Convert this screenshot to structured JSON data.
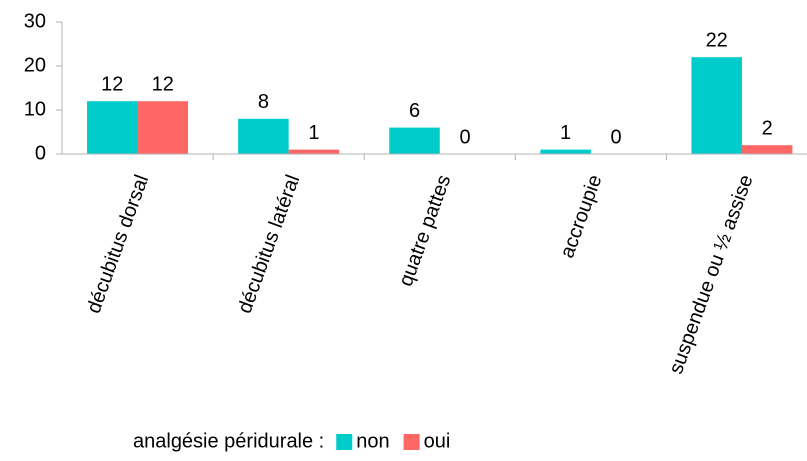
{
  "chart_data": {
    "type": "bar",
    "categories": [
      "décubitus dorsal",
      "décubitus latéral",
      "quatre pattes",
      "accroupie",
      "suspendue ou ½ assise"
    ],
    "series": [
      {
        "name": "non",
        "color": "#00cccc",
        "values": [
          12,
          8,
          6,
          1,
          22
        ]
      },
      {
        "name": "oui",
        "color": "#ff6666",
        "values": [
          12,
          1,
          0,
          0,
          2
        ]
      }
    ],
    "legend_title": "analgésie péridurale :",
    "ylim": [
      0,
      30
    ],
    "yticks": [
      0,
      10,
      20,
      30
    ],
    "grid": false,
    "legend": "bottom"
  }
}
